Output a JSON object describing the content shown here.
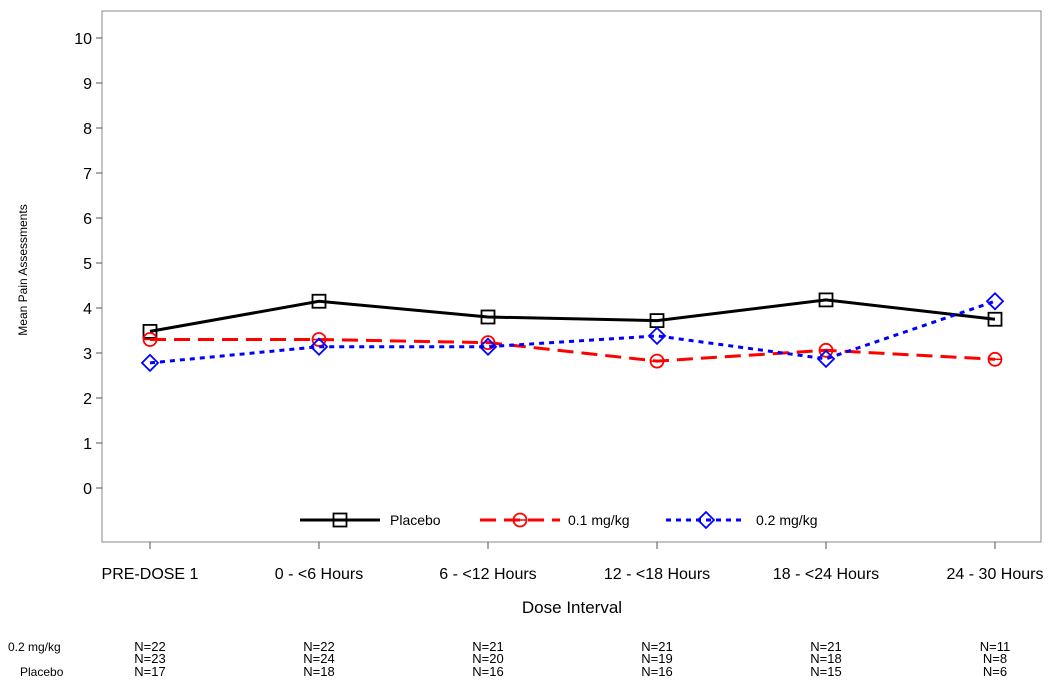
{
  "chart_data": {
    "type": "line",
    "xlabel": "Dose Interval",
    "ylabel": "Mean Pain Assessments",
    "ylim": [
      -1.2,
      10.6
    ],
    "yticks": [
      0,
      1,
      2,
      3,
      4,
      5,
      6,
      7,
      8,
      9,
      10
    ],
    "grid": false,
    "legend_position": "bottom-inside",
    "categories": [
      "PRE-DOSE 1",
      "0 - <6 Hours",
      "6 - <12 Hours",
      "12 - <18 Hours",
      "18 - <24 Hours",
      "24 - 30 Hours"
    ],
    "series": [
      {
        "name": "Placebo",
        "values": [
          3.48,
          4.15,
          3.8,
          3.72,
          4.18,
          3.75
        ],
        "color": "#000000",
        "dash": "solid",
        "marker": "square"
      },
      {
        "name": "0.1 mg/kg",
        "values": [
          3.3,
          3.3,
          3.23,
          2.82,
          3.06,
          2.86
        ],
        "color": "#ff0000",
        "dash": "dashed",
        "marker": "circle"
      },
      {
        "name": "0.2 mg/kg",
        "values": [
          2.78,
          3.14,
          3.14,
          3.38,
          2.87,
          4.15
        ],
        "color": "#0000ff",
        "dash": "dotted",
        "marker": "diamond"
      }
    ],
    "n_table": {
      "rows": [
        {
          "label": "0.2 mg/kg",
          "values": [
            "N=22",
            "N=22",
            "N=21",
            "N=21",
            "N=21",
            "N=11"
          ]
        },
        {
          "label": "",
          "values": [
            "N=23",
            "N=24",
            "N=20",
            "N=19",
            "N=18",
            "N=8"
          ]
        },
        {
          "label": "Placebo",
          "values": [
            "N=17",
            "N=18",
            "N=16",
            "N=16",
            "N=15",
            "N=6"
          ]
        }
      ]
    }
  }
}
